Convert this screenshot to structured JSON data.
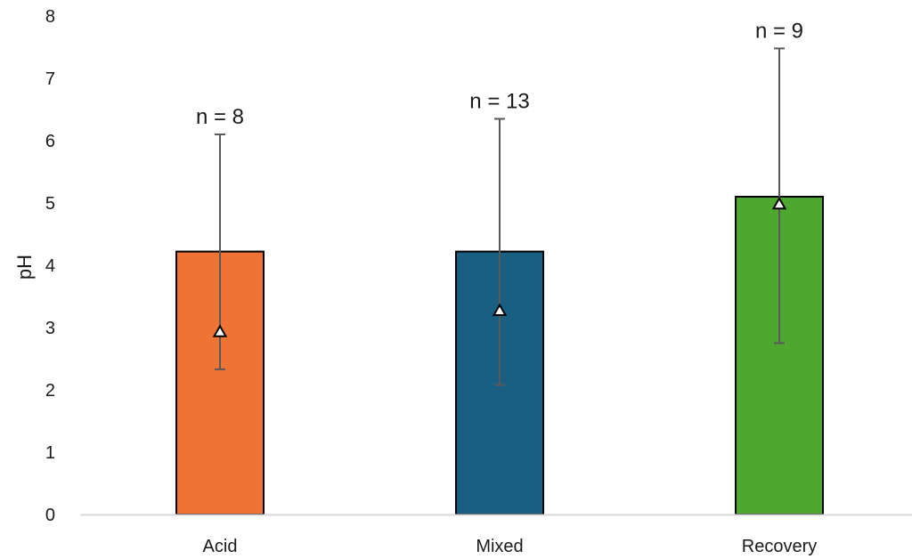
{
  "chart_data": {
    "type": "bar",
    "title": "",
    "xlabel": "",
    "ylabel": "pH",
    "ylim": [
      0,
      8
    ],
    "yticks": [
      "0",
      "1",
      "2",
      "3",
      "4",
      "5",
      "6",
      "7",
      "8"
    ],
    "grid": false,
    "legend": "none",
    "categories": [
      "Acid",
      "Mixed",
      "Recovery"
    ],
    "values": [
      4.22,
      4.22,
      5.1
    ],
    "markers": [
      2.93,
      3.27,
      4.98
    ],
    "error_low": [
      2.33,
      2.08,
      2.75
    ],
    "error_high": [
      6.1,
      6.35,
      7.48
    ],
    "n_labels": [
      "n = 8",
      "n = 13",
      "n = 9"
    ],
    "colors": [
      "#ed7434",
      "#185f82",
      "#4ea72e"
    ],
    "marker_shape": "triangle"
  }
}
